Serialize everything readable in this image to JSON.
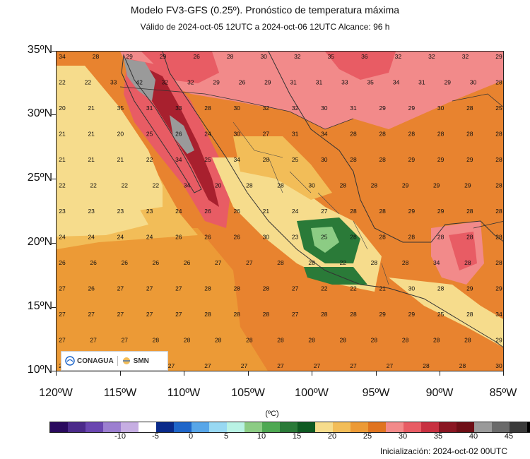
{
  "title": "Modelo FV3-GFS (0.25º). Pronóstico de temperatura máxima",
  "subtitle": "Válido de 2024-oct-05 12UTC a 2024-oct-06 12UTC    Alcance: 96 h",
  "units": "(ºC)",
  "init_label": "Inicialización: 2024-oct-02 00UTC",
  "logos": {
    "conagua": "CONAGUA",
    "smn": "SMN"
  },
  "lat_labels": [
    "35ºN",
    "30ºN",
    "25ºN",
    "20ºN",
    "15ºN",
    "10ºN"
  ],
  "lon_labels": [
    "120ºW",
    "115ºW",
    "110ºW",
    "105ºW",
    "100ºW",
    "95ºW",
    "90ºW",
    "85ºW"
  ],
  "legend_ticks": [
    "-10",
    "-5",
    "0",
    "5",
    "10",
    "15",
    "20",
    "25",
    "30",
    "35",
    "40",
    "45"
  ],
  "legend_colors": [
    "#2a0a5e",
    "#4b2a8a",
    "#6a46b0",
    "#9c7fd0",
    "#c6aee2",
    "#ffffff",
    "#0a2a8a",
    "#1f66c9",
    "#58a6e8",
    "#98d8f2",
    "#b9f2e4",
    "#8ccc84",
    "#4ea852",
    "#2a7a38",
    "#0f5a22",
    "#f6dc8c",
    "#f2bd58",
    "#ec9a36",
    "#e07420",
    "#f28a8a",
    "#e85c64",
    "#c83040",
    "#8a1622",
    "#6e0e16",
    "#9a9a9a",
    "#6a6a6a",
    "#3a3a3a",
    "#000000"
  ],
  "region_colors": {
    "ocean_hot": "#e8832f",
    "ocean_warm": "#ec9a36",
    "ocean_mild": "#f2bd58",
    "ocean_cool": "#f6dc8c",
    "pink": "#f28a8a",
    "red": "#e85c64",
    "darkred": "#a8202e",
    "gray": "#9a9a9a",
    "green": "#2a7a38",
    "lightgreen": "#8ccc84"
  },
  "temp_grid": [
    [
      "34",
      "28",
      "29",
      "29",
      "26",
      "28",
      "30",
      "32",
      "35",
      "36",
      "32",
      "32",
      "32",
      "29"
    ],
    [
      "22",
      "22",
      "33",
      "42",
      "32",
      "32",
      "29",
      "26",
      "29",
      "31",
      "31",
      "33",
      "35",
      "34",
      "31",
      "29",
      "30",
      "28"
    ],
    [
      "20",
      "21",
      "35",
      "31",
      "33",
      "28",
      "30",
      "32",
      "32",
      "30",
      "31",
      "29",
      "29",
      "30",
      "28",
      "25"
    ],
    [
      "21",
      "21",
      "20",
      "25",
      "26",
      "24",
      "30",
      "27",
      "31",
      "34",
      "28",
      "28",
      "28",
      "28",
      "28",
      "28"
    ],
    [
      "21",
      "21",
      "21",
      "22",
      "34",
      "25",
      "34",
      "28",
      "25",
      "30",
      "28",
      "28",
      "29",
      "29",
      "29",
      "28"
    ],
    [
      "22",
      "22",
      "22",
      "22",
      "34",
      "20",
      "28",
      "28",
      "30",
      "28",
      "28",
      "29",
      "29",
      "29",
      "28"
    ],
    [
      "23",
      "23",
      "23",
      "23",
      "24",
      "26",
      "26",
      "21",
      "24",
      "27",
      "28",
      "28",
      "29",
      "29",
      "28",
      "28"
    ],
    [
      "24",
      "24",
      "24",
      "24",
      "26",
      "26",
      "26",
      "30",
      "23",
      "25",
      "28",
      "28",
      "28",
      "28",
      "28",
      "28"
    ],
    [
      "26",
      "26",
      "26",
      "26",
      "26",
      "27",
      "27",
      "28",
      "28",
      "22",
      "28",
      "28",
      "34",
      "28",
      "28"
    ],
    [
      "27",
      "26",
      "27",
      "27",
      "27",
      "28",
      "28",
      "28",
      "27",
      "22",
      "22",
      "21",
      "30",
      "28",
      "29",
      "29"
    ],
    [
      "27",
      "27",
      "27",
      "27",
      "27",
      "28",
      "28",
      "28",
      "27",
      "28",
      "28",
      "29",
      "29",
      "25",
      "28",
      "34"
    ],
    [
      "27",
      "27",
      "27",
      "28",
      "28",
      "28",
      "28",
      "28",
      "28",
      "28",
      "28",
      "28",
      "28",
      "28",
      "29"
    ],
    [
      "27",
      "27",
      "27",
      "27",
      "27",
      "27",
      "27",
      "27",
      "27",
      "27",
      "28",
      "28",
      "30"
    ]
  ]
}
